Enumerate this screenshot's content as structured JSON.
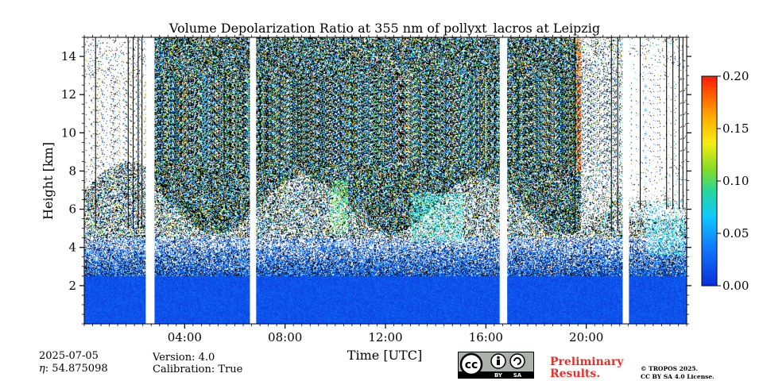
{
  "chart_data": {
    "type": "heatmap",
    "title": "Volume Depolarization Ratio at 355 nm of pollyxt_lacros at Leipzig",
    "xlabel": "Time [UTC]",
    "ylabel": "Height [km]",
    "xlim_hours": [
      0,
      24
    ],
    "ylim_km": [
      0,
      15
    ],
    "x_ticks": [
      {
        "hour": 4,
        "label": "04:00"
      },
      {
        "hour": 8,
        "label": "08:00"
      },
      {
        "hour": 12,
        "label": "12:00"
      },
      {
        "hour": 16,
        "label": "16:00"
      },
      {
        "hour": 20,
        "label": "20:00"
      }
    ],
    "y_ticks": [
      {
        "km": 2,
        "label": "2"
      },
      {
        "km": 4,
        "label": "4"
      },
      {
        "km": 6,
        "label": "6"
      },
      {
        "km": 8,
        "label": "8"
      },
      {
        "km": 10,
        "label": "10"
      },
      {
        "km": 12,
        "label": "12"
      },
      {
        "km": 14,
        "label": "14"
      }
    ],
    "colorbar": {
      "range": [
        0.0,
        0.2
      ],
      "ticks": [
        {
          "value": 0.0,
          "label": "0.00"
        },
        {
          "value": 0.05,
          "label": "0.05"
        },
        {
          "value": 0.1,
          "label": "0.10"
        },
        {
          "value": 0.15,
          "label": "0.15"
        },
        {
          "value": 0.2,
          "label": "0.20"
        }
      ]
    },
    "data_gaps_hours": [
      [
        2.45,
        2.8
      ],
      [
        6.6,
        6.85
      ],
      [
        16.55,
        16.85
      ],
      [
        21.45,
        21.7
      ]
    ],
    "features": [
      {
        "name": "boundary layer low depolarization",
        "hours": [
          0,
          24
        ],
        "km": [
          0,
          3.5
        ],
        "value": 0.01
      },
      {
        "name": "elevated depolarizing layer",
        "hours": [
          9.8,
          10.5
        ],
        "km": [
          4.8,
          7.5
        ],
        "value": 0.1
      },
      {
        "name": "elevated depolarizing layer",
        "hours": [
          13.0,
          15.1
        ],
        "km": [
          4.3,
          6.8
        ],
        "value": 0.08
      },
      {
        "name": "high depolarization column",
        "hours": [
          19.6,
          19.8
        ],
        "km": [
          8,
          15
        ],
        "value": 0.18
      },
      {
        "name": "low elevated layer",
        "hours": [
          22.4,
          23.9
        ],
        "km": [
          3.5,
          6.5
        ],
        "value": 0.07
      }
    ]
  },
  "footer": {
    "date": "2025-07-05",
    "eta_label": "η",
    "eta_value": ": 54.875098",
    "version": "Version: 4.0",
    "calibration": "Calibration: True",
    "cc_text": "cc",
    "by_text": "BY",
    "sa_text": "SA",
    "preliminary_1": "Preliminary",
    "preliminary_2": "Results.",
    "copyright_1": "© TROPOS 2025.",
    "copyright_2": "CC BY SA 4.0 License."
  }
}
